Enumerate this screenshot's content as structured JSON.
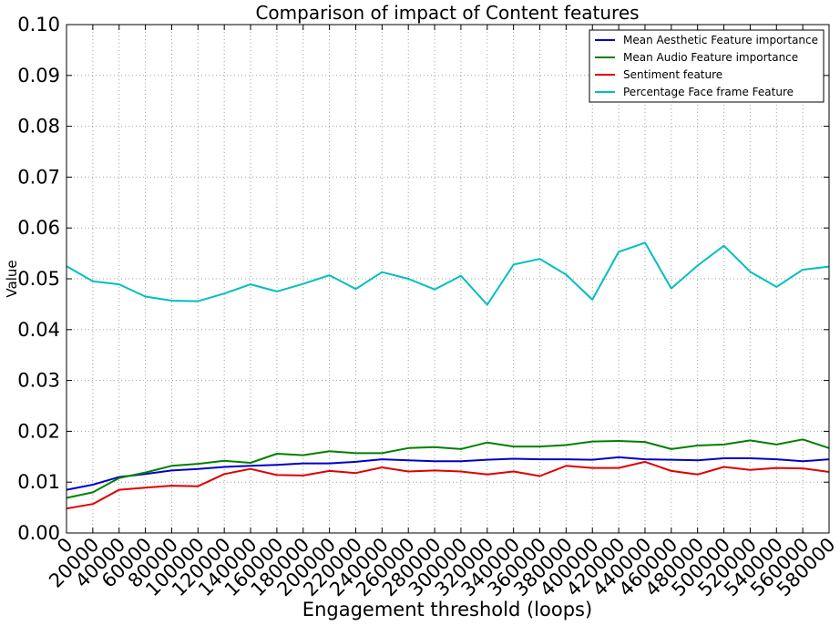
{
  "chart_data": {
    "type": "line",
    "title": "Comparison of impact of Content features",
    "xlabel": "Engagement threshold (loops)",
    "ylabel": "Value",
    "xlim": [
      0,
      580000
    ],
    "ylim": [
      0,
      0.1
    ],
    "grid": true,
    "legend_position": "top-right",
    "x": [
      0,
      20000,
      40000,
      60000,
      80000,
      100000,
      120000,
      140000,
      160000,
      180000,
      200000,
      220000,
      240000,
      260000,
      280000,
      300000,
      320000,
      340000,
      360000,
      380000,
      400000,
      420000,
      440000,
      460000,
      480000,
      500000,
      520000,
      540000,
      560000,
      580000
    ],
    "x_ticks": [
      "0",
      "20000",
      "40000",
      "60000",
      "80000",
      "100000",
      "120000",
      "140000",
      "160000",
      "180000",
      "200000",
      "220000",
      "240000",
      "260000",
      "280000",
      "300000",
      "320000",
      "340000",
      "360000",
      "380000",
      "400000",
      "420000",
      "440000",
      "460000",
      "480000",
      "500000",
      "520000",
      "540000",
      "560000",
      "580000"
    ],
    "y_ticks": [
      "0.00",
      "0.01",
      "0.02",
      "0.03",
      "0.04",
      "0.05",
      "0.06",
      "0.07",
      "0.08",
      "0.09",
      "0.10"
    ],
    "series": [
      {
        "name": "Mean Aesthetic Feature importance",
        "color": "#0000cc",
        "values": [
          0.0085,
          0.0095,
          0.011,
          0.0116,
          0.0123,
          0.0126,
          0.013,
          0.0132,
          0.0134,
          0.0137,
          0.0137,
          0.014,
          0.0145,
          0.0143,
          0.0141,
          0.0141,
          0.0144,
          0.0146,
          0.0145,
          0.0145,
          0.0144,
          0.0149,
          0.0145,
          0.0144,
          0.0143,
          0.0147,
          0.0147,
          0.0145,
          0.0141,
          0.0145
        ]
      },
      {
        "name": "Mean Audio Feature importance",
        "color": "#008000",
        "values": [
          0.0069,
          0.008,
          0.0108,
          0.0119,
          0.0132,
          0.0136,
          0.0142,
          0.0138,
          0.0156,
          0.0153,
          0.0161,
          0.0157,
          0.0157,
          0.0167,
          0.0169,
          0.0165,
          0.0178,
          0.017,
          0.017,
          0.0173,
          0.018,
          0.0181,
          0.0179,
          0.0165,
          0.0172,
          0.0174,
          0.0182,
          0.0174,
          0.0184,
          0.0167
        ]
      },
      {
        "name": "Sentiment feature",
        "color": "#e00000",
        "values": [
          0.0048,
          0.0057,
          0.0085,
          0.0089,
          0.0093,
          0.0092,
          0.0116,
          0.0126,
          0.0114,
          0.0113,
          0.0122,
          0.0118,
          0.0129,
          0.0121,
          0.0123,
          0.0121,
          0.0115,
          0.0121,
          0.0112,
          0.0132,
          0.0128,
          0.0128,
          0.014,
          0.0122,
          0.0115,
          0.013,
          0.0124,
          0.0128,
          0.0127,
          0.012
        ]
      },
      {
        "name": "Percentage Face frame Feature",
        "color": "#00bfbf",
        "values": [
          0.0525,
          0.0495,
          0.0489,
          0.0465,
          0.0457,
          0.0456,
          0.0471,
          0.0489,
          0.0475,
          0.049,
          0.0507,
          0.048,
          0.0513,
          0.05,
          0.0479,
          0.0506,
          0.0449,
          0.0528,
          0.0539,
          0.0508,
          0.0459,
          0.0553,
          0.0571,
          0.0481,
          0.0526,
          0.0565,
          0.0514,
          0.0484,
          0.0518,
          0.0524
        ]
      }
    ]
  }
}
